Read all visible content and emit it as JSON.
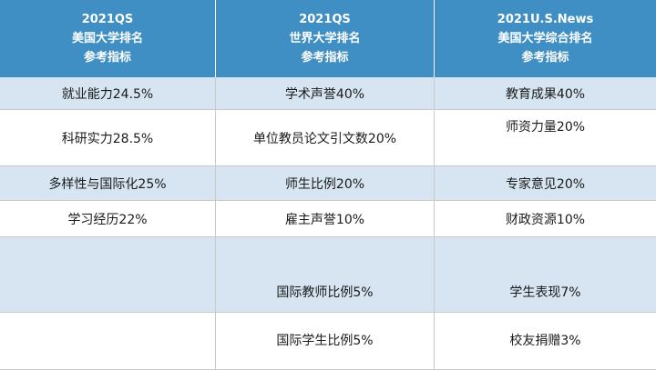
{
  "headers": [
    {
      "line1": "2021QS",
      "line2": "美国大学排名",
      "line3": "参考指标"
    },
    {
      "line1": "2021QS",
      "line2": "世界大学排名",
      "line3": "参考指标"
    },
    {
      "line1": "2021U.S.News",
      "line2": "美国大学综合排名",
      "line3": "参考指标"
    }
  ],
  "rows": [
    [
      "就业能力24.5%",
      "学术声誉40%",
      "教育成果40%"
    ],
    [
      "科研实力28.5%",
      "单位教员论文引文数20%",
      "师资力量20%"
    ],
    [
      "多样性与国际化25%",
      "师生比例20%",
      "专家意见20%"
    ],
    [
      "学习经历22%",
      "雇主声誉10%",
      "财政资源10%"
    ],
    [
      "",
      "国际教师比例5%",
      "学生表现7%"
    ],
    [
      "",
      "国际学生比例5%",
      "校友捐赠3%"
    ]
  ],
  "colors": {
    "header_bg": "#3f8fc4",
    "alt_row_bg": "#d6e5f1",
    "grid_line": "#c9c9c9"
  }
}
